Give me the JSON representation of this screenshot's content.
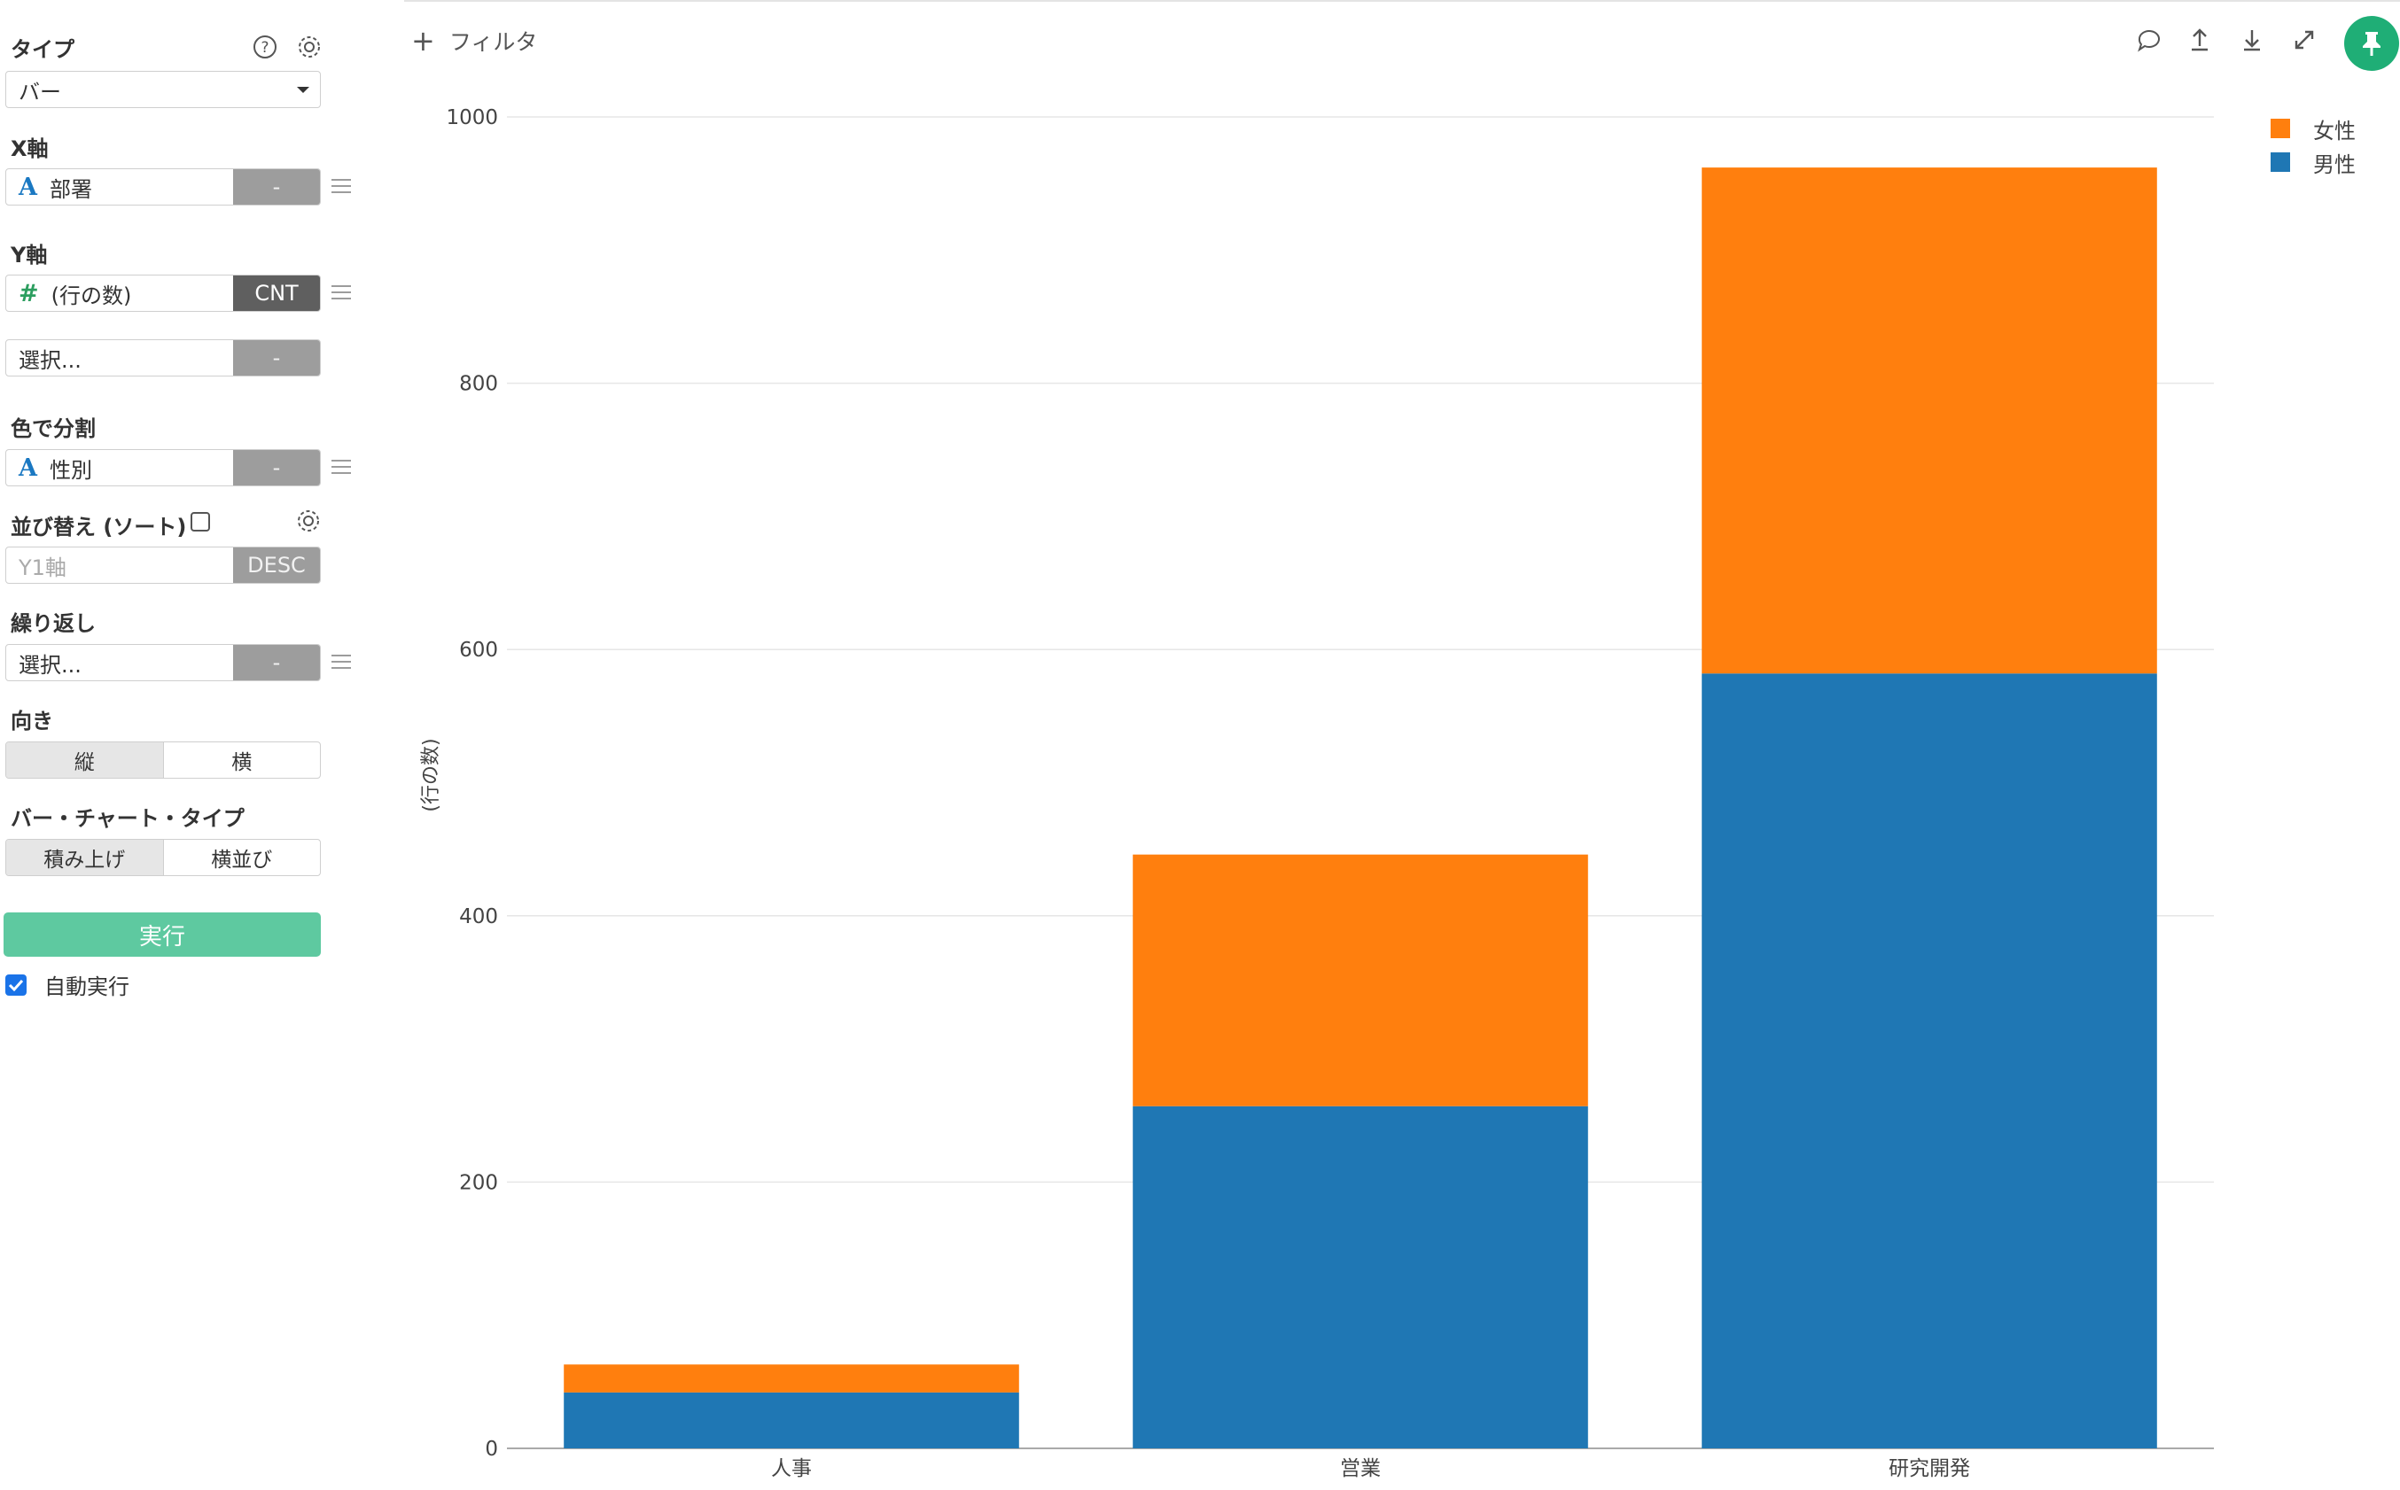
{
  "panel": {
    "type_label": "タイプ",
    "type_value": "バー",
    "x_axis_label": "X軸",
    "x_field": {
      "type_icon": "A",
      "name": "部署",
      "agg": "-"
    },
    "y_axis_label": "Y軸",
    "y_field": {
      "type_icon": "#",
      "name": "(行の数)",
      "agg": "CNT"
    },
    "y_field2": {
      "placeholder": "選択...",
      "agg": "-"
    },
    "color_label": "色で分割",
    "color_field": {
      "type_icon": "A",
      "name": "性別",
      "agg": "-"
    },
    "sort_label": "並び替え (ソート)",
    "sort_field": {
      "placeholder": "Y1軸",
      "order": "DESC"
    },
    "repeat_label": "繰り返し",
    "repeat_field": {
      "placeholder": "選択...",
      "agg": "-"
    },
    "orientation_label": "向き",
    "orientation_options": [
      "縦",
      "横"
    ],
    "bar_type_label": "バー・チャート・タイプ",
    "bar_type_options": [
      "積み上げ",
      "横並び"
    ],
    "run_label": "実行",
    "auto_run_label": "自動実行"
  },
  "toolbar": {
    "filter_label": "フィルタ",
    "icons": [
      "comment-icon",
      "upload-icon",
      "download-icon",
      "expand-icon",
      "pin-icon"
    ],
    "pin_color": "#1fae76"
  },
  "chart_data": {
    "type": "bar",
    "stacked": true,
    "categories": [
      "人事",
      "営業",
      "研究開発"
    ],
    "series": [
      {
        "name": "男性",
        "color": "#1f77b4",
        "values": [
          42,
          257,
          582
        ]
      },
      {
        "name": "女性",
        "color": "#ff7f0e",
        "values": [
          21,
          189,
          380
        ]
      }
    ],
    "ylabel": "(行の数)",
    "ylim": [
      0,
      1000
    ],
    "yticks": [
      0,
      200,
      400,
      600,
      800,
      1000
    ],
    "legend": [
      "女性",
      "男性"
    ],
    "legend_position": "top-right",
    "grid": true
  }
}
